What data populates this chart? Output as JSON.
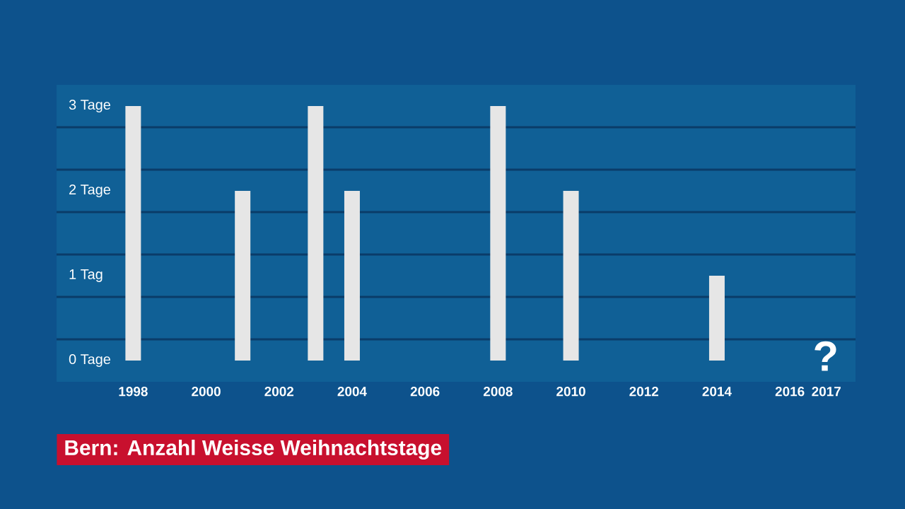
{
  "chart_data": {
    "type": "bar",
    "title": "Bern: Anzahl Weisse Weihnachtstage",
    "x": [
      1998,
      2001,
      2003,
      2004,
      2008,
      2010,
      2014
    ],
    "values": [
      3,
      2,
      3,
      2,
      3,
      2,
      1
    ],
    "color": "#e6e6e6",
    "xlim": [
      1995.9,
      2017.8
    ],
    "xticks": [
      1998,
      2000,
      2002,
      2004,
      2006,
      2008,
      2010,
      2012,
      2014,
      2016,
      2017
    ],
    "ylim": [
      -0.25,
      3.25
    ],
    "yticks": [
      {
        "value": 0,
        "label": "0 Tage"
      },
      {
        "value": 1,
        "label": "1 Tag"
      },
      {
        "value": 2,
        "label": "2 Tage"
      },
      {
        "value": 3,
        "label": "3 Tage"
      },
      {
        "value": 0.25,
        "label": null
      },
      {
        "value": 0.75,
        "label": null
      },
      {
        "value": 1.25,
        "label": null
      },
      {
        "value": 1.75,
        "label": null
      },
      {
        "value": 2.25,
        "label": null
      },
      {
        "value": 2.75,
        "label": null
      }
    ],
    "grid": "y",
    "annotations": [
      "?"
    ]
  }
}
